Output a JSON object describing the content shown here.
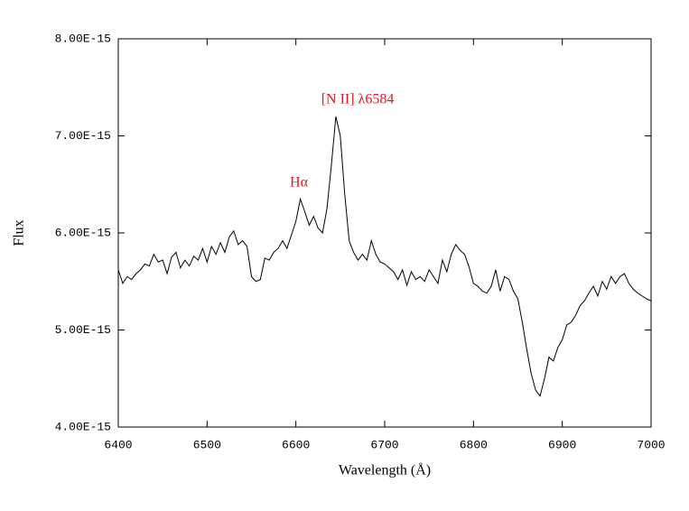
{
  "chart_data": {
    "type": "line",
    "x_label": "Wavelength (Å)",
    "y_label": "Flux",
    "x": [
      6400,
      6405,
      6410,
      6415,
      6420,
      6425,
      6430,
      6435,
      6440,
      6445,
      6450,
      6455,
      6460,
      6465,
      6470,
      6475,
      6480,
      6485,
      6490,
      6495,
      6500,
      6505,
      6510,
      6515,
      6520,
      6525,
      6530,
      6535,
      6540,
      6545,
      6550,
      6555,
      6560,
      6565,
      6570,
      6575,
      6580,
      6585,
      6590,
      6595,
      6600,
      6605,
      6610,
      6615,
      6620,
      6625,
      6630,
      6635,
      6640,
      6645,
      6650,
      6655,
      6660,
      6665,
      6670,
      6675,
      6680,
      6685,
      6690,
      6695,
      6700,
      6705,
      6710,
      6715,
      6720,
      6725,
      6730,
      6735,
      6740,
      6745,
      6750,
      6755,
      6760,
      6765,
      6770,
      6775,
      6780,
      6785,
      6790,
      6795,
      6800,
      6805,
      6810,
      6815,
      6820,
      6825,
      6830,
      6835,
      6840,
      6845,
      6850,
      6855,
      6860,
      6865,
      6870,
      6875,
      6880,
      6885,
      6890,
      6895,
      6900,
      6905,
      6910,
      6915,
      6920,
      6925,
      6930,
      6935,
      6940,
      6945,
      6950,
      6955,
      6960,
      6965,
      6970,
      6975,
      6980,
      6985,
      6990,
      6995,
      7000
    ],
    "values": [
      5.62e-15,
      5.48e-15,
      5.55e-15,
      5.52e-15,
      5.58e-15,
      5.62e-15,
      5.68e-15,
      5.66e-15,
      5.78e-15,
      5.7e-15,
      5.72e-15,
      5.58e-15,
      5.75e-15,
      5.8e-15,
      5.64e-15,
      5.72e-15,
      5.66e-15,
      5.76e-15,
      5.72e-15,
      5.84e-15,
      5.7e-15,
      5.86e-15,
      5.78e-15,
      5.9e-15,
      5.8e-15,
      5.96e-15,
      6.02e-15,
      5.88e-15,
      5.92e-15,
      5.86e-15,
      5.55e-15,
      5.5e-15,
      5.52e-15,
      5.74e-15,
      5.72e-15,
      5.8e-15,
      5.84e-15,
      5.92e-15,
      5.84e-15,
      5.98e-15,
      6.12e-15,
      6.35e-15,
      6.22e-15,
      6.08e-15,
      6.17e-15,
      6.05e-15,
      6e-15,
      6.25e-15,
      6.7e-15,
      7.2e-15,
      7e-15,
      6.4e-15,
      5.92e-15,
      5.8e-15,
      5.72e-15,
      5.78e-15,
      5.72e-15,
      5.92e-15,
      5.78e-15,
      5.7e-15,
      5.68e-15,
      5.64e-15,
      5.6e-15,
      5.52e-15,
      5.62e-15,
      5.46e-15,
      5.6e-15,
      5.52e-15,
      5.55e-15,
      5.5e-15,
      5.62e-15,
      5.55e-15,
      5.48e-15,
      5.72e-15,
      5.6e-15,
      5.78e-15,
      5.88e-15,
      5.82e-15,
      5.78e-15,
      5.65e-15,
      5.48e-15,
      5.45e-15,
      5.4e-15,
      5.38e-15,
      5.45e-15,
      5.62e-15,
      5.4e-15,
      5.55e-15,
      5.52e-15,
      5.4e-15,
      5.32e-15,
      5.08e-15,
      4.8e-15,
      4.55e-15,
      4.38e-15,
      4.32e-15,
      4.5e-15,
      4.72e-15,
      4.68e-15,
      4.82e-15,
      4.9e-15,
      5.05e-15,
      5.08e-15,
      5.15e-15,
      5.25e-15,
      5.3e-15,
      5.38e-15,
      5.45e-15,
      5.35e-15,
      5.5e-15,
      5.42e-15,
      5.55e-15,
      5.48e-15,
      5.55e-15,
      5.58e-15,
      5.48e-15,
      5.42e-15,
      5.38e-15,
      5.35e-15,
      5.32e-15,
      5.3e-15
    ],
    "color": "#000000",
    "xlim": [
      6400,
      7000
    ],
    "xticks": [
      6400,
      6500,
      6600,
      6700,
      6800,
      6900,
      7000
    ],
    "ylim": [
      4e-15,
      8e-15
    ],
    "yticks": [
      {
        "value": 4e-15,
        "label": "4.00E-15"
      },
      {
        "value": 5e-15,
        "label": "5.00E-15"
      },
      {
        "value": 6e-15,
        "label": "6.00E-15"
      },
      {
        "value": 7e-15,
        "label": "7.00E-15"
      },
      {
        "value": 8e-15,
        "label": "8.00E-15"
      }
    ],
    "annotations": [
      "Hα",
      "[N II] λ6584"
    ]
  }
}
